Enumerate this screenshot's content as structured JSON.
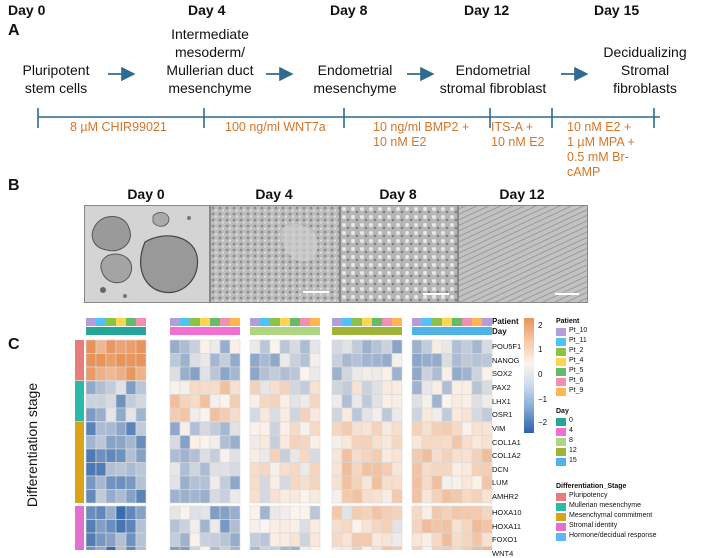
{
  "panel_a": {
    "letter": "A",
    "days": [
      "Day 0",
      "Day 4",
      "Day 8",
      "Day 12",
      "Day 15"
    ],
    "stages": [
      "Pluripotent\nstem cells",
      "Intermediate\nmesoderm/\nMullerian duct\nmesenchyme",
      "Endometrial\nmesenchyme",
      "Endometrial\nstromal fibroblast",
      "Decidualizing\nStromal\nfibroblasts"
    ],
    "conditions": [
      "8 µM CHIR99021",
      "100 ng/ml WNT7a",
      "10 ng/ml BMP2 +\n10 nM E2",
      "ITS-A +\n10 nM E2",
      "10 nM E2 +\n1 µM MPA +\n0.5 mM Br-\ncAMP"
    ],
    "colors": {
      "arrow": "#2e6b8f",
      "timeline": "#2e6b8f",
      "condition": "#d4762a"
    }
  },
  "panel_b": {
    "letter": "B",
    "images": [
      {
        "title": "Day 0"
      },
      {
        "title": "Day 4"
      },
      {
        "title": "Day 8"
      },
      {
        "title": "Day 12"
      }
    ]
  },
  "panel_c": {
    "letter": "C",
    "y_axis_label": "Differentiation stage",
    "annotation_labels": [
      "Patient",
      "Day"
    ],
    "groups": [
      {
        "stage": "Pluripotency",
        "color": "#e87c7c",
        "genes": [
          "POU5F1",
          "NANOG",
          "SOX2"
        ]
      },
      {
        "stage": "Mullerian mesenchyme",
        "color": "#2bb9a8",
        "genes": [
          "PAX2",
          "LHX1",
          "OSR1"
        ]
      },
      {
        "stage": "Mesenchymal commitment",
        "color": "#d9a31a",
        "genes": [
          "VIM",
          "COL1A1",
          "COL1A2",
          "DCN",
          "LUM",
          "AMHR2"
        ]
      },
      {
        "stage": "Stromal identity",
        "color": "#e36fcf",
        "genes": [
          "HOXA10",
          "HOXA11",
          "FOXO1",
          "WNT4"
        ]
      }
    ],
    "colorbar": {
      "ticks": [
        "2",
        "1",
        "0",
        "−1",
        "−2"
      ]
    },
    "legend": {
      "patient": {
        "title": "Patient",
        "items": [
          {
            "label": "Pt_10",
            "color": "#b39ddb"
          },
          {
            "label": "Pt_11",
            "color": "#4fc3f7"
          },
          {
            "label": "Pt_2",
            "color": "#8bc34a"
          },
          {
            "label": "Pt_4",
            "color": "#ffd54f"
          },
          {
            "label": "Pt_5",
            "color": "#66bb6a"
          },
          {
            "label": "Pt_6",
            "color": "#f48fb1"
          },
          {
            "label": "Pt_9",
            "color": "#ffb74d"
          }
        ]
      },
      "day": {
        "title": "Day",
        "items": [
          {
            "label": "0",
            "color": "#26a69a"
          },
          {
            "label": "4",
            "color": "#f06fd0"
          },
          {
            "label": "8",
            "color": "#aed581"
          },
          {
            "label": "12",
            "color": "#9fb33a"
          },
          {
            "label": "15",
            "color": "#4fb3e8"
          }
        ]
      },
      "stage": {
        "title": "Differentiation_Stage",
        "items": [
          {
            "label": "Pluripotency",
            "color": "#e87c7c"
          },
          {
            "label": "Mullerian mesenchyme",
            "color": "#2bb9a8"
          },
          {
            "label": "Mesenchymal commitment",
            "color": "#d9a31a"
          },
          {
            "label": "Stromal identity",
            "color": "#e36fcf"
          },
          {
            "label": "Hormone/decidual response",
            "color": "#5bb8ff"
          }
        ]
      }
    }
  }
}
